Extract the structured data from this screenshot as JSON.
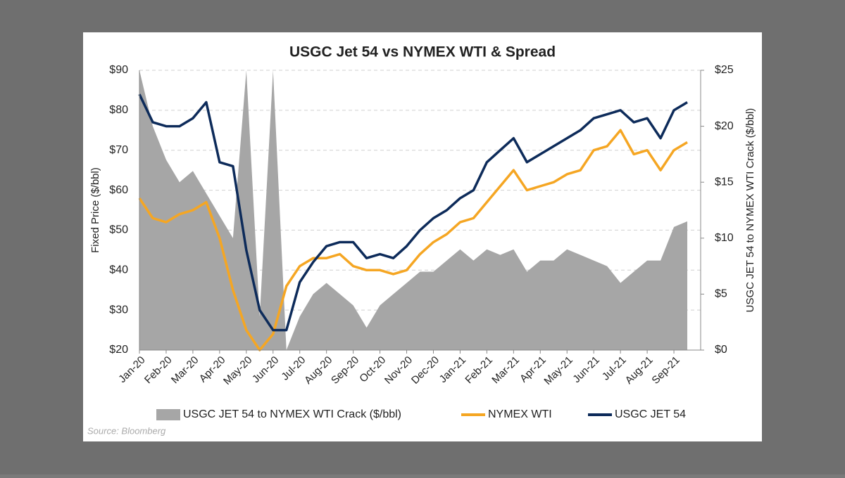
{
  "chart_data": {
    "type": "line",
    "title": "USGC Jet 54 vs NYMEX WTI & Spread",
    "y_label": "Fixed Price ($/bbl)",
    "y2_label": "USGC JET 54 to NYMEX WTI Crack ($/bbl)",
    "source": "Source: Bloomberg",
    "categories": [
      "Jan-20",
      null,
      "Feb-20",
      null,
      "Mar-20",
      null,
      "Apr-20",
      null,
      "May-20",
      null,
      "Jun-20",
      null,
      "Jul-20",
      null,
      "Aug-20",
      null,
      "Sep-20",
      null,
      "Oct-20",
      null,
      "Nov-20",
      null,
      "Dec-20",
      null,
      "Jan-21",
      null,
      "Feb-21",
      null,
      "Mar-21",
      null,
      "Apr-21",
      null,
      "May-21",
      null,
      "Jun-21",
      null,
      "Jul-21",
      null,
      "Aug-21",
      null,
      "Sep-21",
      null
    ],
    "ylim": [
      20,
      90
    ],
    "yticks": [
      {
        "value": 20,
        "label": "$20"
      },
      {
        "value": 30,
        "label": "$30"
      },
      {
        "value": 40,
        "label": "$40"
      },
      {
        "value": 50,
        "label": "$50"
      },
      {
        "value": 60,
        "label": "$60"
      },
      {
        "value": 70,
        "label": "$70"
      },
      {
        "value": 80,
        "label": "$80"
      },
      {
        "value": 90,
        "label": "$90"
      }
    ],
    "y2lim": [
      0,
      25
    ],
    "y2ticks": [
      {
        "value": 0,
        "label": "$0"
      },
      {
        "value": 5,
        "label": "$5"
      },
      {
        "value": 10,
        "label": "$10"
      },
      {
        "value": 15,
        "label": "$15"
      },
      {
        "value": 20,
        "label": "$20"
      },
      {
        "value": 25,
        "label": "$25"
      }
    ],
    "grid": true,
    "legend": "bottom",
    "series": [
      {
        "name": "USGC JET 54 to NYMEX WTI Crack ($/bbl)",
        "type": "area",
        "axis": "y2",
        "color": "#a6a6a6",
        "values": [
          25,
          20,
          17,
          15,
          16,
          14,
          12,
          10,
          25,
          3,
          25,
          0,
          3,
          5,
          6,
          5,
          4,
          2,
          4,
          5,
          6,
          7,
          7,
          8,
          9,
          8,
          9,
          8.5,
          9,
          7,
          8,
          8,
          9,
          8.5,
          8,
          7.5,
          6,
          7,
          8,
          8,
          11,
          11.5
        ]
      },
      {
        "name": "NYMEX WTI",
        "color": "#f5a623",
        "values": [
          58,
          53,
          52,
          54,
          55,
          57,
          48,
          35,
          25,
          20,
          24,
          36,
          41,
          43,
          43,
          44,
          41,
          40,
          40,
          39,
          40,
          44,
          47,
          49,
          52,
          53,
          57,
          61,
          65,
          60,
          61,
          62,
          64,
          65,
          70,
          71,
          75,
          69,
          70,
          65,
          70,
          72
        ]
      },
      {
        "name": "USGC JET 54",
        "color": "#0d2b5a",
        "values": [
          84,
          77,
          76,
          76,
          78,
          82,
          67,
          66,
          45,
          30,
          25,
          25,
          37,
          42,
          46,
          47,
          47,
          43,
          44,
          43,
          46,
          50,
          53,
          55,
          58,
          60,
          67,
          70,
          73,
          67,
          69,
          71,
          73,
          75,
          78,
          79,
          80,
          77,
          78,
          73,
          80,
          82
        ]
      }
    ]
  }
}
